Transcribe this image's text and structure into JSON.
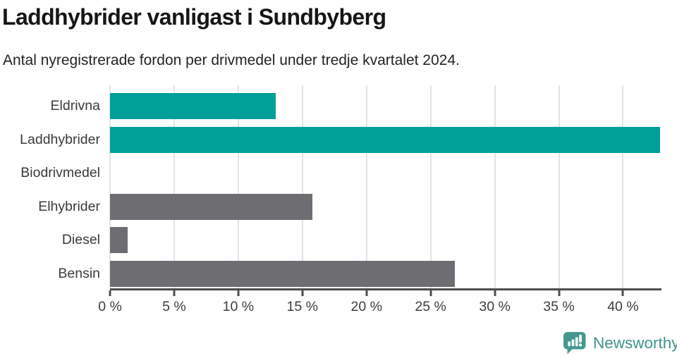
{
  "page": {
    "background": "#ffffff"
  },
  "chart_data": {
    "type": "bar",
    "orientation": "horizontal",
    "title": "Laddhybrider vanligast i Sundbyberg",
    "subtitle": "Antal nyregistrerade fordon per drivmedel under tredje kvartalet 2024.",
    "categories": [
      "Eldrivna",
      "Laddhybrider",
      "Biodrivmedel",
      "Elhybrider",
      "Diesel",
      "Bensin"
    ],
    "values": [
      12.9,
      42.9,
      0,
      15.8,
      1.4,
      26.9
    ],
    "value_unit": "%",
    "bar_colors": [
      "#00a099",
      "#00a099",
      "#6e6d72",
      "#6e6d72",
      "#6e6d72",
      "#6e6d72"
    ],
    "xlim": [
      0,
      43
    ],
    "x_ticks": [
      0,
      5,
      10,
      15,
      20,
      25,
      30,
      35,
      40
    ],
    "x_tick_label_suffix": " %",
    "xlabel": "",
    "ylabel": "",
    "grid": true,
    "legend": false
  },
  "colors": {
    "accent_teal": "#00a099",
    "bar_gray": "#6e6d72",
    "axis": "#4d4d4d",
    "gridline": "#e4e3e5",
    "category_label": "#3a3a3a",
    "tick_label": "#3d3d3d",
    "title": "#161616",
    "subtitle": "#232323",
    "logo": "#3f948e"
  },
  "footer": {
    "logo_text": "Newsworthy"
  }
}
